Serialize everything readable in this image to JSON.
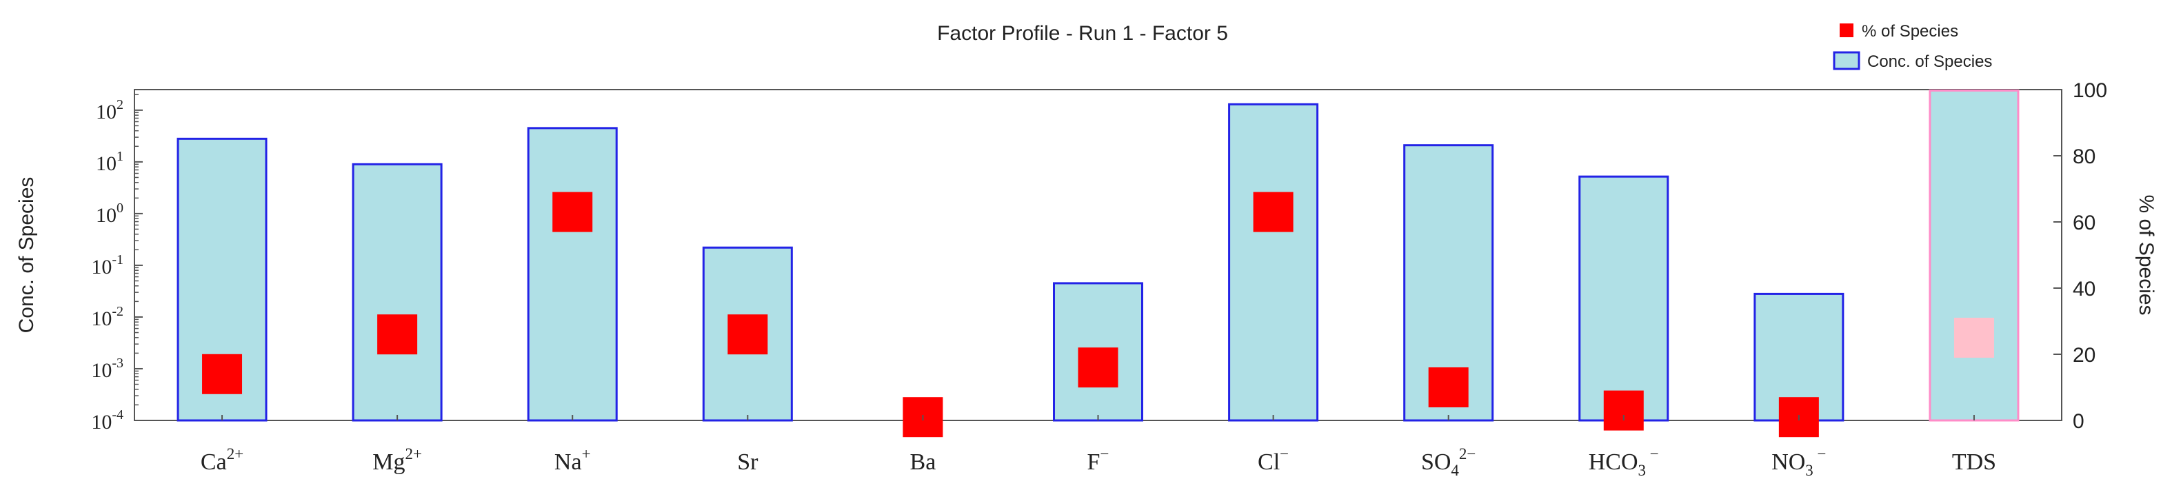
{
  "chart_data": {
    "type": "bar",
    "title": "Factor Profile - Run 1 - Factor 5",
    "ylabel_left": "Conc. of Species",
    "ylabel_right": "% of Species",
    "left_axis": {
      "scale": "log",
      "range": [
        0.0001,
        250
      ],
      "ticks": [
        {
          "base": "10",
          "exp": "2"
        },
        {
          "base": "10",
          "exp": "1"
        },
        {
          "base": "10",
          "exp": "0"
        },
        {
          "base": "10",
          "exp": "-1"
        },
        {
          "base": "10",
          "exp": "-2"
        },
        {
          "base": "10",
          "exp": "-3"
        },
        {
          "base": "10",
          "exp": "-4"
        }
      ]
    },
    "right_axis": {
      "scale": "linear",
      "range": [
        0,
        100
      ],
      "ticks": [
        0,
        20,
        40,
        60,
        80,
        100
      ]
    },
    "categories": [
      {
        "base": "Ca",
        "sub": "",
        "sup": "2+"
      },
      {
        "base": "Mg",
        "sub": "",
        "sup": "2+"
      },
      {
        "base": "Na",
        "sub": "",
        "sup": "+"
      },
      {
        "base": "Sr",
        "sub": "",
        "sup": ""
      },
      {
        "base": "Ba",
        "sub": "",
        "sup": ""
      },
      {
        "base": "F",
        "sub": "",
        "sup": "−"
      },
      {
        "base": "Cl",
        "sub": "",
        "sup": "−"
      },
      {
        "base": "SO",
        "sub": "4",
        "sup": "2−"
      },
      {
        "base": "HCO",
        "sub": "3",
        "sup": " −"
      },
      {
        "base": "NO",
        "sub": "3",
        "sup": " −"
      },
      {
        "base": "TDS",
        "sub": "",
        "sup": ""
      }
    ],
    "series": [
      {
        "name": "Conc. of Species",
        "kind": "bar",
        "axis": "left",
        "values": [
          28,
          9,
          45,
          0.22,
          0.0001,
          0.045,
          130,
          21,
          5.2,
          0.028,
          240
        ]
      },
      {
        "name": "% of Species",
        "kind": "square-marker",
        "axis": "right",
        "values": [
          14,
          26,
          63,
          26,
          1,
          16,
          63,
          10,
          3,
          1,
          25
        ]
      }
    ],
    "highlight_category": "TDS",
    "legend": {
      "position": "top-right",
      "entries": [
        {
          "label": "% of Species",
          "marker": "square"
        },
        {
          "label": "Conc. of Species",
          "marker": "bar"
        }
      ]
    },
    "grid": false
  },
  "colors": {
    "bar_fill": "#b0e0e6",
    "bar_stroke": "#2323e6",
    "marker": "#ff0000",
    "highlight_bar_stroke": "#ff8cc8",
    "highlight_marker": "#ffc0cb",
    "axis": "#555555",
    "text": "#222222"
  }
}
